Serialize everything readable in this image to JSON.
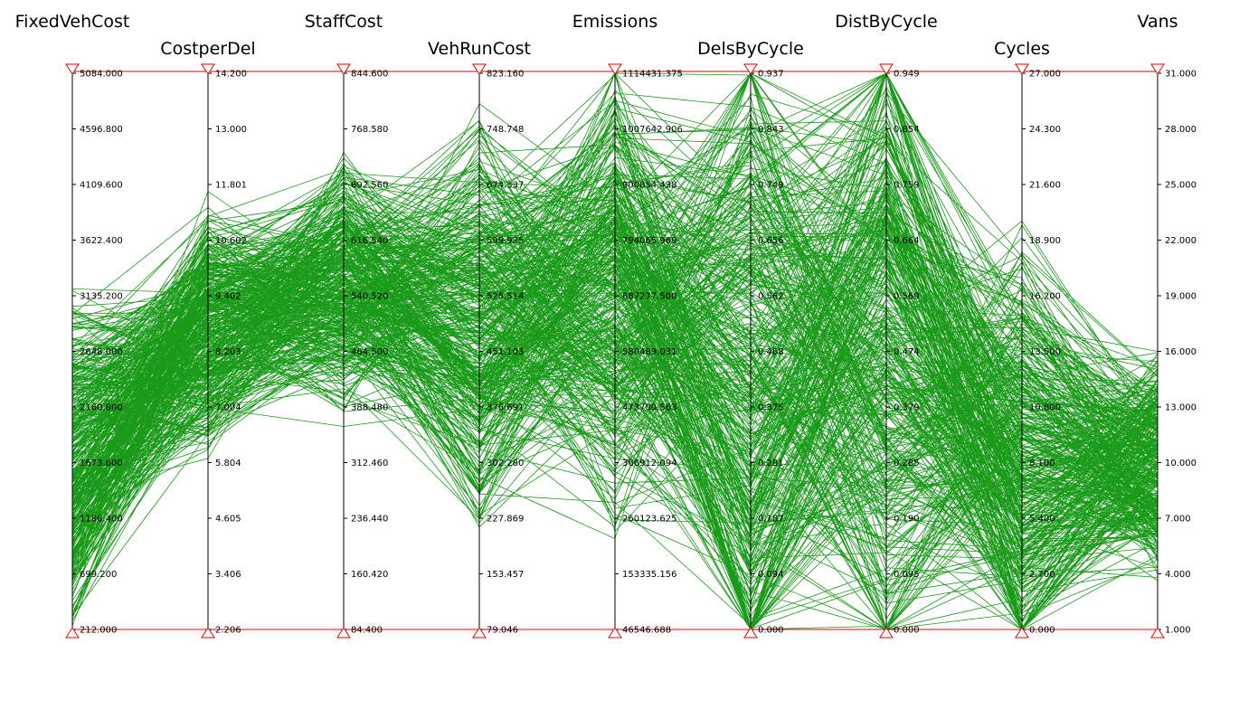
{
  "chart_data": {
    "type": "parallel-coordinates",
    "line_color": "#009100",
    "bound_color": "#e00000",
    "axes": [
      {
        "name": "FixedVehCost",
        "min": 212.0,
        "max": 5084.0,
        "ticks": [
          "212.000",
          "699.200",
          "1186.400",
          "1673.600",
          "2160.800",
          "2648.000",
          "3135.200",
          "3622.400",
          "4109.600",
          "4596.800",
          "5084.000"
        ]
      },
      {
        "name": "CostperDel",
        "min": 2.206,
        "max": 14.2,
        "ticks": [
          "2.206",
          "3.406",
          "4.605",
          "5.804",
          "7.004",
          "8.203",
          "9.402",
          "10.602",
          "11.801",
          "13.000",
          "14.200"
        ]
      },
      {
        "name": "StaffCost",
        "min": 84.4,
        "max": 844.6,
        "ticks": [
          "84.400",
          "160.420",
          "236.440",
          "312.460",
          "388.480",
          "464.500",
          "540.520",
          "616.540",
          "692.560",
          "768.580",
          "844.600"
        ]
      },
      {
        "name": "VehRunCost",
        "min": 79.046,
        "max": 823.16,
        "ticks": [
          "79.046",
          "153.457",
          "227.869",
          "302.280",
          "376.691",
          "451.103",
          "525.514",
          "599.925",
          "674.337",
          "748.748",
          "823.160"
        ]
      },
      {
        "name": "Emissions",
        "min": 46546.688,
        "max": 1114431.375,
        "ticks": [
          "46546.688",
          "153335.156",
          "260123.625",
          "366912.094",
          "473700.563",
          "580489.031",
          "687277.500",
          "794065.969",
          "900854.438",
          "1007642.906",
          "1114431.375"
        ]
      },
      {
        "name": "DelsByCycle",
        "min": 0.0,
        "max": 0.937,
        "ticks": [
          "0.000",
          "0.094",
          "0.187",
          "0.281",
          "0.375",
          "0.468",
          "0.562",
          "0.656",
          "0.749",
          "0.843",
          "0.937"
        ]
      },
      {
        "name": "DistByCycle",
        "min": 0.0,
        "max": 0.949,
        "ticks": [
          "0.000",
          "0.095",
          "0.190",
          "0.285",
          "0.379",
          "0.474",
          "0.569",
          "0.664",
          "0.759",
          "0.854",
          "0.949"
        ]
      },
      {
        "name": "Cycles",
        "min": 0.0,
        "max": 27.0,
        "ticks": [
          "0.000",
          "2.700",
          "5.400",
          "8.100",
          "10.800",
          "13.500",
          "16.200",
          "18.900",
          "21.600",
          "24.300",
          "27.000"
        ]
      },
      {
        "name": "Vans",
        "min": 1.0,
        "max": 31.0,
        "ticks": [
          "1.000",
          "4.000",
          "7.000",
          "10.000",
          "13.000",
          "16.000",
          "19.000",
          "22.000",
          "25.000",
          "28.000",
          "31.000"
        ]
      }
    ]
  }
}
